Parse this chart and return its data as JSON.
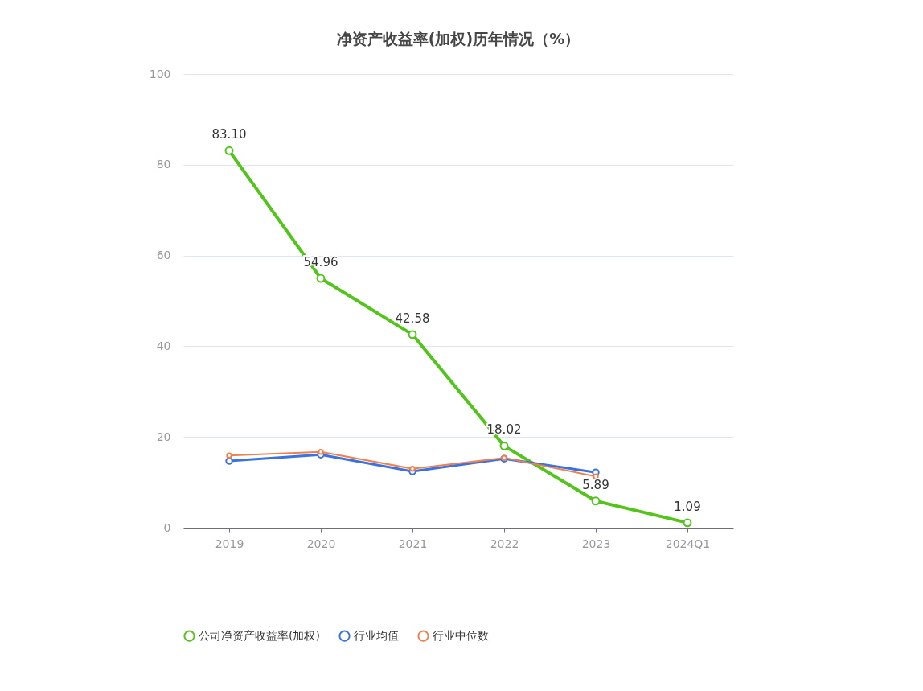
{
  "chart_data": {
    "type": "line",
    "title": "净资产收益率(加权)历年情况（%）",
    "categories": [
      "2019",
      "2020",
      "2021",
      "2022",
      "2023",
      "2024Q1"
    ],
    "series": [
      {
        "name": "公司净资产收益率(加权)",
        "color": "#52c41a",
        "values": [
          83.1,
          54.96,
          42.58,
          18.02,
          5.89,
          1.09
        ],
        "value_labels": [
          "83.10",
          "54.96",
          "42.58",
          "18.02",
          "5.89",
          "1.09"
        ]
      },
      {
        "name": "行业均值",
        "color": "#3a72e0",
        "values": [
          14.7,
          16.1,
          12.4,
          15.2,
          12.2,
          null
        ]
      },
      {
        "name": "行业中位数",
        "color": "#f0804f",
        "values": [
          15.9,
          16.7,
          13.0,
          15.4,
          11.3,
          null
        ]
      }
    ],
    "ylim": [
      0,
      100
    ],
    "yticks": [
      0,
      20,
      40,
      60,
      80,
      100
    ],
    "grid": "y",
    "legend": "bottom",
    "marker": "circle",
    "line_style": "solid"
  }
}
